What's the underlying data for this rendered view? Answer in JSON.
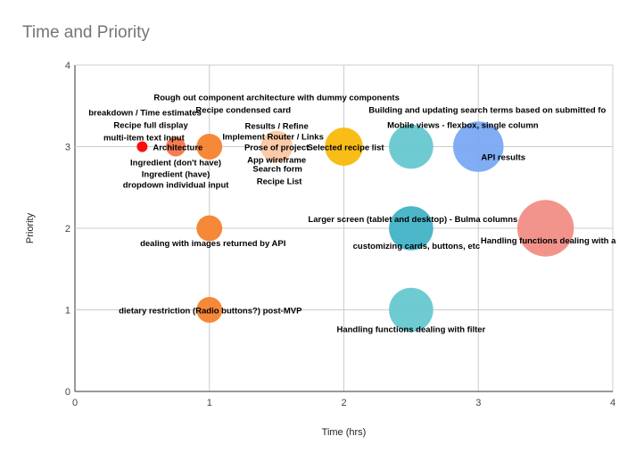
{
  "chart_data": {
    "type": "bubble",
    "title": "Time and Priority",
    "xlabel": "Time (hrs)",
    "ylabel": "Priority",
    "xlim": [
      0,
      4
    ],
    "ylim": [
      0,
      4
    ],
    "xticks": [
      "0",
      "1",
      "2",
      "3",
      "4"
    ],
    "yticks": [
      "0",
      "1",
      "2",
      "3",
      "4"
    ],
    "grid": true,
    "points": [
      {
        "x": 0.5,
        "y": 3,
        "size": 1,
        "color": "#ff0000",
        "labels": [
          "Architecture"
        ]
      },
      {
        "x": 0.75,
        "y": 3,
        "size": 2,
        "color": "#f4764b",
        "labels": [
          "Ingredient (don't have)",
          "Ingredient (have)",
          "dropdown individual input"
        ]
      },
      {
        "x": 1,
        "y": 3,
        "size": 3,
        "color": "#f5822e",
        "labels": [
          "Recipe condensed card",
          "breakdown / Time estimates",
          "Recipe full display",
          "multi-item text input"
        ]
      },
      {
        "x": 1.5,
        "y": 3,
        "size": 4,
        "color": "#fbc8a2",
        "labels": [
          "Rough out component architecture with dummy components",
          "Results / Refine",
          "Implement Router / Links",
          "Prose of project",
          "App wireframe",
          "Search form",
          "Recipe List"
        ]
      },
      {
        "x": 2,
        "y": 3,
        "size": 5,
        "color": "#f9b90c",
        "labels": [
          "Selected recipe list"
        ]
      },
      {
        "x": 2.5,
        "y": 3,
        "size": 6,
        "color": "#67c8d0",
        "labels": [
          "Mobile views - flexbox, single column"
        ]
      },
      {
        "x": 3,
        "y": 3,
        "size": 7,
        "color": "#79a9f2",
        "labels": [
          "Building and updating search terms based on submitted fo",
          "API results"
        ]
      },
      {
        "x": 1,
        "y": 2,
        "size": 3,
        "color": "#f5822e",
        "labels": [
          "dealing with images returned by API"
        ]
      },
      {
        "x": 2.5,
        "y": 2,
        "size": 6,
        "color": "#41b3c6",
        "labels": [
          "Larger screen (tablet and desktop) - Bulma columns",
          "customizing cards, buttons, etc"
        ]
      },
      {
        "x": 3.5,
        "y": 2,
        "size": 8,
        "color": "#f28e86",
        "labels": [
          "Handling functions dealing with a"
        ]
      },
      {
        "x": 1,
        "y": 1,
        "size": 3,
        "color": "#f5822e",
        "labels": [
          "dietary restriction (Radio buttons?) post-MVP"
        ]
      },
      {
        "x": 2.5,
        "y": 1,
        "size": 6,
        "color": "#67c8d0",
        "labels": [
          "Handling functions dealing with filter"
        ]
      }
    ]
  }
}
